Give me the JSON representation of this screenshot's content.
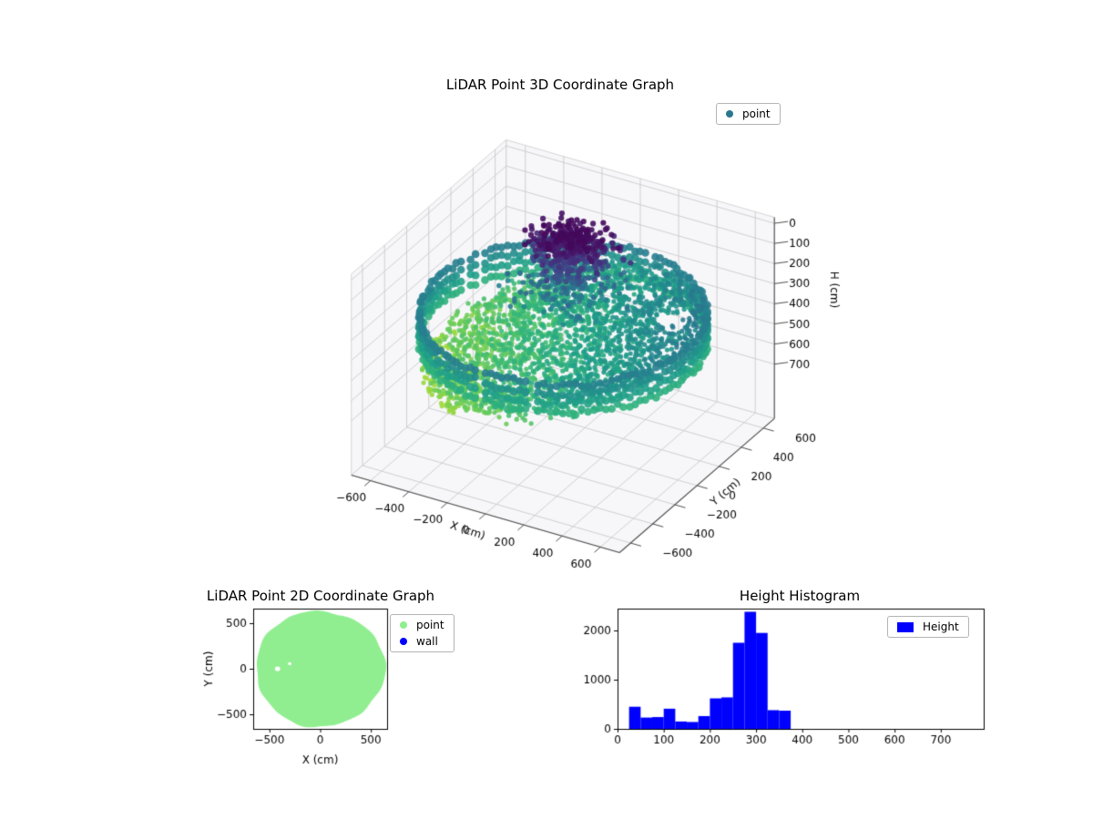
{
  "figure": {
    "background": "#ffffff"
  },
  "chart_data": [
    {
      "id": "lidar3d",
      "type": "scatter",
      "projection": "3d",
      "title": "LiDAR Point 3D Coordinate Graph",
      "xlabel": "X (cm)",
      "ylabel": "Y (cm)",
      "zlabel": "H (cm)",
      "xticks": [
        -600,
        -400,
        -200,
        0,
        200,
        400,
        600
      ],
      "yticks": [
        -600,
        -400,
        -200,
        0,
        200,
        400,
        600
      ],
      "hticks": [
        0,
        100,
        200,
        300,
        400,
        500,
        600,
        700
      ],
      "h_axis_inverted": true,
      "grid": true,
      "colormap": "viridis",
      "color_by": "height",
      "legend": {
        "location": "upper right",
        "entries": [
          {
            "label": "point",
            "color": "#2a788e",
            "marker": "circle"
          }
        ]
      },
      "points_summary": {
        "n_points_approx": 4200,
        "shape": "circular room scan disc, radius ≈ 650 cm",
        "wall_ring": {
          "radius_cm": 650,
          "height_range_cm": [
            290,
            455
          ],
          "marker": "large circles around rim"
        },
        "floor": {
          "height_range_cm": [
            240,
            600
          ],
          "trend": "higher values (yellow) toward -X, lower (teal/green) toward +X and +Y"
        },
        "object_cluster": {
          "center_xy_cm": [
            -60,
            180
          ],
          "radius_cm": 130,
          "height_range_cm": [
            15,
            215
          ],
          "color": "dark purple (low H)"
        },
        "holes": [
          {
            "center_xy_cm": [
              430,
              250
            ],
            "r_cm": 85
          },
          {
            "center_xy_cm": [
              160,
              430
            ],
            "r_cm": 60
          }
        ]
      }
    },
    {
      "id": "lidar2d",
      "type": "scatter",
      "title": "LiDAR Point 2D Coordinate Graph",
      "xlabel": "X (cm)",
      "ylabel": "Y (cm)",
      "xticks": [
        -500,
        0,
        500
      ],
      "yticks": [
        -500,
        0,
        500
      ],
      "xlim": [
        -660,
        660
      ],
      "ylim": [
        -660,
        660
      ],
      "legend": {
        "location": "outside upper right",
        "entries": [
          {
            "label": "point",
            "color": "#90ee90",
            "marker": "circle"
          },
          {
            "label": "wall",
            "color": "#0000ff",
            "marker": "circle"
          }
        ]
      },
      "series": [
        {
          "name": "point",
          "color": "#90ee90",
          "shape": "filled disc centered (0,0), radius ≈ 640 cm with slightly irregular rim",
          "holes": [
            {
              "x": -420,
              "y": 0,
              "r": 26
            },
            {
              "x": -300,
              "y": 55,
              "r": 17
            }
          ]
        },
        {
          "name": "wall",
          "color": "#0000ff",
          "shape": "ring at disc rim (hidden beneath point layer)"
        }
      ]
    },
    {
      "id": "height_hist",
      "type": "bar",
      "title": "Height Histogram",
      "bar_color": "#0000ff",
      "legend": {
        "location": "upper right",
        "entries": [
          {
            "label": "Height",
            "color": "#0000ff",
            "marker": "rect"
          }
        ]
      },
      "bin_edges": [
        25,
        50,
        75,
        100,
        125,
        150,
        175,
        200,
        225,
        250,
        275,
        300,
        325,
        350,
        375
      ],
      "counts": [
        450,
        230,
        240,
        410,
        150,
        140,
        260,
        620,
        640,
        1750,
        2380,
        1950,
        380,
        370
      ],
      "xticks": [
        0,
        100,
        200,
        300,
        400,
        500,
        600,
        700
      ],
      "yticks": [
        0,
        1000,
        2000
      ],
      "xlim": [
        0,
        793
      ],
      "ylim": [
        0,
        2444
      ]
    }
  ]
}
